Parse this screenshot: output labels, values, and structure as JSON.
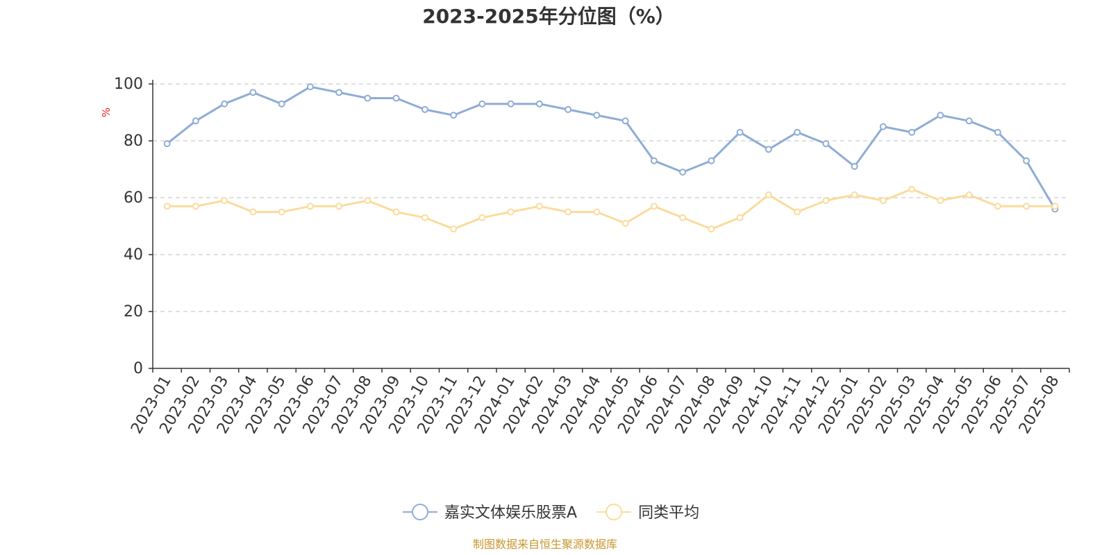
{
  "chart_data": {
    "type": "line",
    "title": "2023-2025年分位图（%）",
    "ylabel": "%",
    "xlabel": "",
    "ylim": [
      0,
      100
    ],
    "yticks": [
      "0",
      "20",
      "40",
      "60",
      "80",
      "100"
    ],
    "grid": true,
    "legend_position": "bottom-center",
    "categories": [
      "2023-01",
      "2023-02",
      "2023-03",
      "2023-04",
      "2023-05",
      "2023-06",
      "2023-07",
      "2023-08",
      "2023-09",
      "2023-10",
      "2023-11",
      "2023-12",
      "2024-01",
      "2024-02",
      "2024-03",
      "2024-04",
      "2024-05",
      "2024-06",
      "2024-07",
      "2024-08",
      "2024-09",
      "2024-10",
      "2024-11",
      "2024-12",
      "2025-01",
      "2025-02",
      "2025-03",
      "2025-04",
      "2025-05",
      "2025-06",
      "2025-07",
      "2025-08"
    ],
    "series": [
      {
        "name": "嘉实文体娱乐股票A",
        "color": "#8eacd6",
        "values": [
          79,
          87,
          93,
          97,
          93,
          99,
          97,
          95,
          95,
          91,
          89,
          93,
          93,
          93,
          91,
          89,
          87,
          73,
          69,
          73,
          83,
          77,
          83,
          79,
          71,
          85,
          83,
          89,
          87,
          83,
          73,
          56
        ]
      },
      {
        "name": "同类平均",
        "color": "#fbdb9c",
        "values": [
          57,
          57,
          59,
          55,
          55,
          57,
          57,
          59,
          55,
          53,
          49,
          53,
          55,
          57,
          55,
          55,
          51,
          57,
          53,
          49,
          53,
          61,
          55,
          59,
          61,
          59,
          63,
          59,
          61,
          57,
          57,
          57
        ]
      }
    ],
    "source": "制图数据来自恒生聚源数据库",
    "colors": {
      "unit": "#e02020",
      "source": "#c8962e",
      "grid": "#cccccc",
      "axis": "#333333"
    }
  }
}
